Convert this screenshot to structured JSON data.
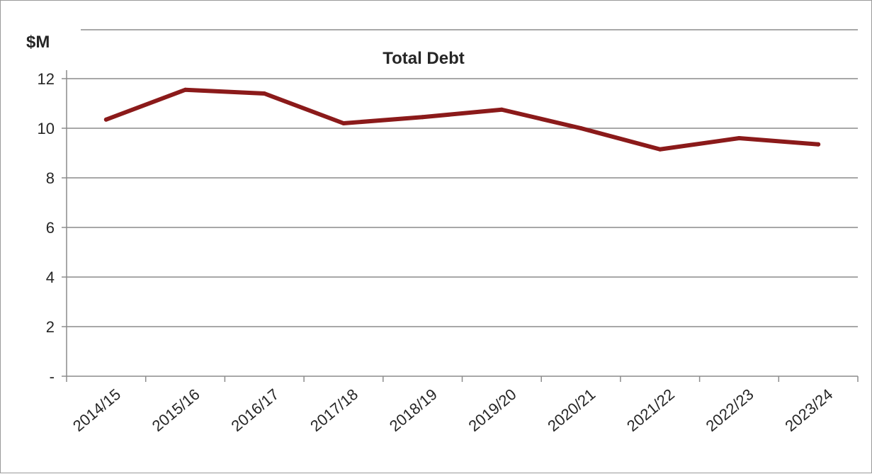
{
  "chart_data": {
    "type": "line",
    "title": "Total Debt",
    "ylabel": "$M",
    "xlabel": "",
    "categories": [
      "2014/15",
      "2015/16",
      "2016/17",
      "2017/18",
      "2018/19",
      "2019/20",
      "2020/21",
      "2021/22",
      "2022/23",
      "2023/24"
    ],
    "series": [
      {
        "values": [
          10.35,
          11.55,
          11.4,
          10.2,
          10.45,
          10.75,
          10.0,
          9.15,
          9.6,
          9.35
        ],
        "color": "#8b1a1a"
      }
    ],
    "ylim": [
      0,
      12
    ],
    "yticks": [
      0,
      2,
      4,
      6,
      8,
      10,
      12
    ],
    "ytick_labels": [
      "-",
      "2",
      "4",
      "6",
      "8",
      "10",
      "12"
    ],
    "grid": "horizontal",
    "legend": "none"
  }
}
